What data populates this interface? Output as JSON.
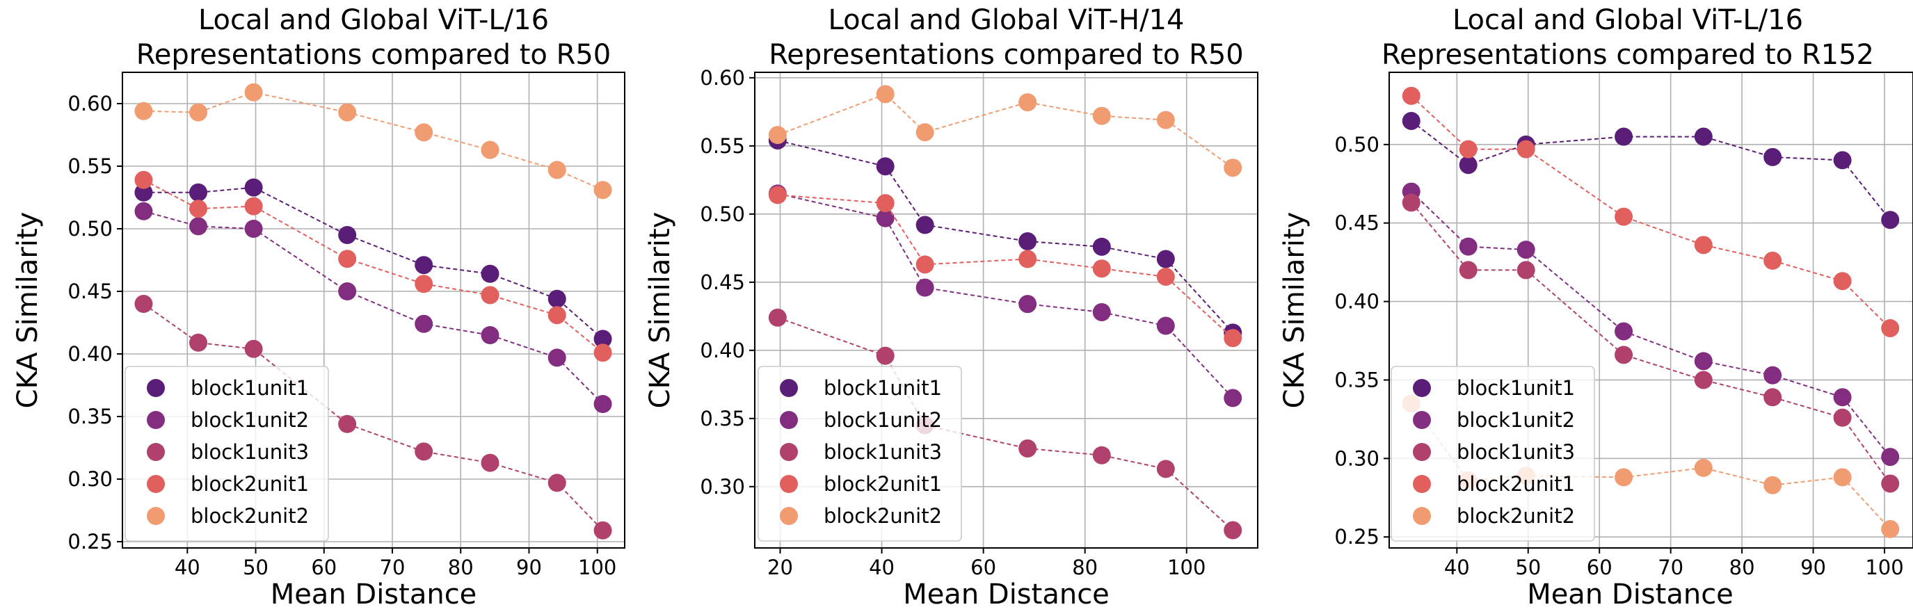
{
  "colors": {
    "block1unit1": "#5a1d78",
    "block1unit2": "#822d80",
    "block1unit3": "#b0406c",
    "block2unit1": "#e1605e",
    "block2unit2": "#f09c70",
    "grid": "#b0b0b0"
  },
  "chart_data": [
    {
      "type": "scatter",
      "title": "Local and Global ViT-L/16\nRepresentations compared to R50",
      "xlabel": "Mean Distance",
      "ylabel": "CKA Similarity",
      "xlim": [
        30.5,
        104
      ],
      "ylim": [
        0.245,
        0.625
      ],
      "xticks": [
        40,
        50,
        60,
        70,
        80,
        90,
        100
      ],
      "xtick_labels": [
        "40",
        "50",
        "60",
        "70",
        "80",
        "90",
        "100"
      ],
      "yticks": [
        0.25,
        0.3,
        0.35,
        0.4,
        0.45,
        0.5,
        0.55,
        0.6
      ],
      "ytick_labels": [
        "0.25",
        "0.30",
        "0.35",
        "0.40",
        "0.45",
        "0.50",
        "0.55",
        "0.60"
      ],
      "grid": true,
      "legend_position": "lower-left",
      "x": [
        33.6,
        41.6,
        49.7,
        63.4,
        74.6,
        84.3,
        94.1,
        100.8
      ],
      "series": [
        {
          "name": "block1unit1",
          "values": [
            0.529,
            0.529,
            0.533,
            0.495,
            0.471,
            0.464,
            0.444,
            0.412
          ]
        },
        {
          "name": "block1unit2",
          "values": [
            0.514,
            0.502,
            0.5,
            0.45,
            0.424,
            0.415,
            0.397,
            0.36
          ]
        },
        {
          "name": "block1unit3",
          "values": [
            0.44,
            0.409,
            0.404,
            0.344,
            0.322,
            0.313,
            0.297,
            0.259
          ]
        },
        {
          "name": "block2unit1",
          "values": [
            0.539,
            0.516,
            0.518,
            0.476,
            0.456,
            0.447,
            0.431,
            0.401
          ]
        },
        {
          "name": "block2unit2",
          "values": [
            0.594,
            0.593,
            0.609,
            0.593,
            0.577,
            0.563,
            0.547,
            0.531
          ]
        }
      ]
    },
    {
      "type": "scatter",
      "title": "Local and Global ViT-H/14\nRepresentations compared to R50",
      "xlabel": "Mean Distance",
      "ylabel": "CKA Similarity",
      "xlim": [
        15,
        114
      ],
      "ylim": [
        0.255,
        0.604
      ],
      "xticks": [
        20,
        40,
        60,
        80,
        100
      ],
      "xtick_labels": [
        "20",
        "40",
        "60",
        "80",
        "100"
      ],
      "yticks": [
        0.3,
        0.35,
        0.4,
        0.45,
        0.5,
        0.55,
        0.6
      ],
      "ytick_labels": [
        "0.30",
        "0.35",
        "0.40",
        "0.45",
        "0.50",
        "0.55",
        "0.60"
      ],
      "grid": true,
      "legend_position": "lower-left",
      "x": [
        19.5,
        40.7,
        48.5,
        68.7,
        83.3,
        95.9,
        109.1
      ],
      "series": [
        {
          "name": "block1unit1",
          "values": [
            0.554,
            0.535,
            0.492,
            0.48,
            0.476,
            0.467,
            0.413
          ]
        },
        {
          "name": "block1unit2",
          "values": [
            0.515,
            0.497,
            0.446,
            0.434,
            0.428,
            0.418,
            0.365
          ]
        },
        {
          "name": "block1unit3",
          "values": [
            0.424,
            0.396,
            0.345,
            0.328,
            0.323,
            0.313,
            0.268
          ]
        },
        {
          "name": "block2unit1",
          "values": [
            0.514,
            0.508,
            0.463,
            0.467,
            0.46,
            0.454,
            0.409
          ]
        },
        {
          "name": "block2unit2",
          "values": [
            0.558,
            0.588,
            0.56,
            0.582,
            0.572,
            0.569,
            0.534
          ]
        }
      ]
    },
    {
      "type": "scatter",
      "title": "Local and Global ViT-L/16\nRepresentations compared to R152",
      "xlabel": "Mean Distance",
      "ylabel": "CKA Similarity",
      "xlim": [
        30.5,
        104
      ],
      "ylim": [
        0.243,
        0.546
      ],
      "xticks": [
        40,
        50,
        60,
        70,
        80,
        90,
        100
      ],
      "xtick_labels": [
        "40",
        "50",
        "60",
        "70",
        "80",
        "90",
        "100"
      ],
      "yticks": [
        0.25,
        0.3,
        0.35,
        0.4,
        0.45,
        0.5
      ],
      "ytick_labels": [
        "0.25",
        "0.30",
        "0.35",
        "0.40",
        "0.45",
        "0.50"
      ],
      "grid": true,
      "legend_position": "lower-left",
      "x": [
        33.6,
        41.6,
        49.7,
        63.4,
        74.6,
        84.3,
        94.1,
        100.8
      ],
      "series": [
        {
          "name": "block1unit1",
          "values": [
            0.515,
            0.487,
            0.5,
            0.505,
            0.505,
            0.492,
            0.49,
            0.452
          ]
        },
        {
          "name": "block1unit2",
          "values": [
            0.47,
            0.435,
            0.433,
            0.381,
            0.362,
            0.353,
            0.339,
            0.301
          ]
        },
        {
          "name": "block1unit3",
          "values": [
            0.463,
            0.42,
            0.42,
            0.366,
            0.35,
            0.339,
            0.326,
            0.284
          ]
        },
        {
          "name": "block2unit1",
          "values": [
            0.531,
            0.497,
            0.497,
            0.454,
            0.436,
            0.426,
            0.413,
            0.383
          ]
        },
        {
          "name": "block2unit2",
          "values": [
            0.335,
            0.286,
            0.289,
            0.288,
            0.294,
            0.283,
            0.288,
            0.255
          ]
        }
      ]
    }
  ]
}
